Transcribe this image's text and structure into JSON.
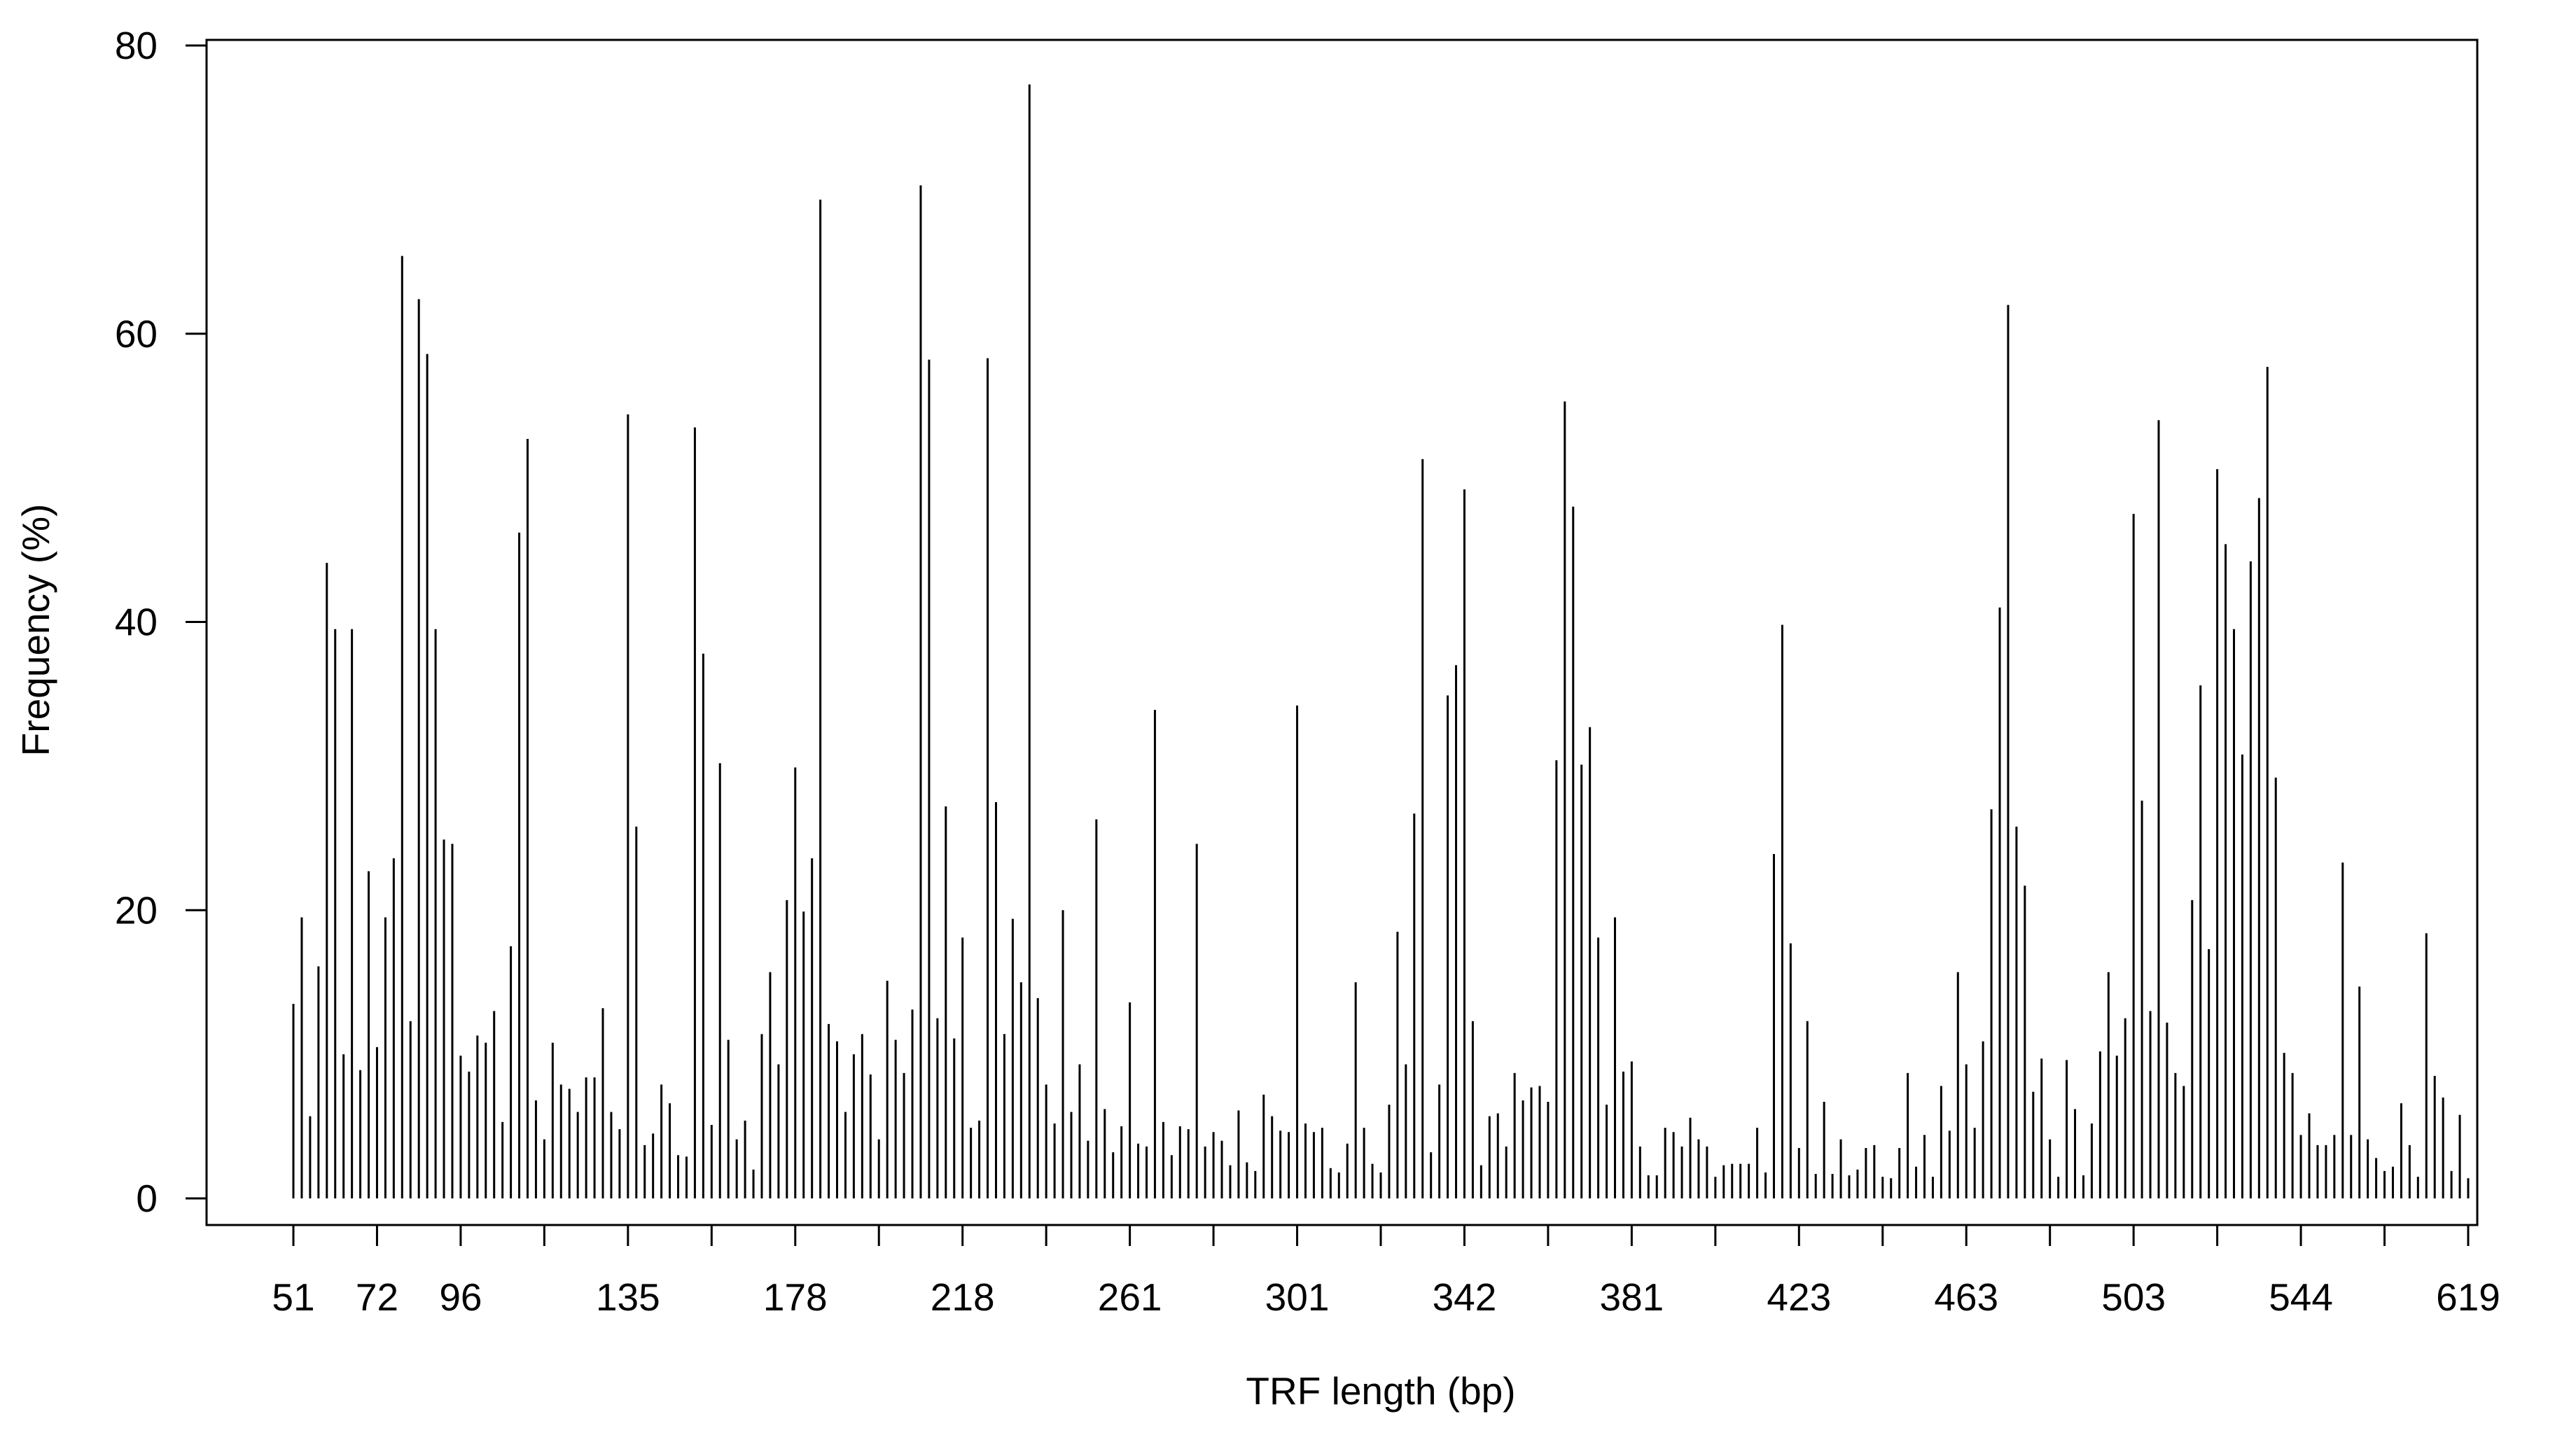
{
  "chart_data": {
    "type": "bar",
    "title": "",
    "xlabel": "TRF length (bp)",
    "ylabel": "Frequency (%)",
    "ylim": [
      0,
      80
    ],
    "yticks": [
      0,
      20,
      40,
      60,
      80
    ],
    "xtick_labels": [
      "51",
      "72",
      "96",
      "135",
      "178",
      "218",
      "261",
      "301",
      "342",
      "381",
      "423",
      "463",
      "503",
      "544",
      "619"
    ],
    "grid": false,
    "legend": "none",
    "bar_color": "#000000",
    "values": [
      13.5,
      19.5,
      5.7,
      16.1,
      44.1,
      39.5,
      10.0,
      39.5,
      8.9,
      22.7,
      10.5,
      19.5,
      23.6,
      65.4,
      12.3,
      62.4,
      58.6,
      39.5,
      24.9,
      24.6,
      9.9,
      8.8,
      11.3,
      10.8,
      13.0,
      5.3,
      17.5,
      46.2,
      52.7,
      6.8,
      4.1,
      10.8,
      7.9,
      7.6,
      6.0,
      8.4,
      8.4,
      13.2,
      6.0,
      4.8,
      54.4,
      25.8,
      3.7,
      4.5,
      7.9,
      6.6,
      3.0,
      2.9,
      53.5,
      37.8,
      5.1,
      30.2,
      11.0,
      4.1,
      5.4,
      2.0,
      11.4,
      15.7,
      9.3,
      20.7,
      29.9,
      19.9,
      23.6,
      69.3,
      12.1,
      10.9,
      6.0,
      10.0,
      11.4,
      8.6,
      4.1,
      15.1,
      11.0,
      8.7,
      13.1,
      70.3,
      58.2,
      12.5,
      27.2,
      11.1,
      18.1,
      4.9,
      5.4,
      58.3,
      27.5,
      11.4,
      19.4,
      15.0,
      77.3,
      13.9,
      7.9,
      5.2,
      20.0,
      6.0,
      9.3,
      4.0,
      26.3,
      6.2,
      3.2,
      5.0,
      13.6,
      3.8,
      3.6,
      33.9,
      5.3,
      3.0,
      5.0,
      4.8,
      24.6,
      3.6,
      4.6,
      4.0,
      2.3,
      6.1,
      2.5,
      1.9,
      7.2,
      5.7,
      4.7,
      4.6,
      34.2,
      5.2,
      4.6,
      4.9,
      2.1,
      1.8,
      3.8,
      15.0,
      4.9,
      2.4,
      1.8,
      6.5,
      18.5,
      9.3,
      26.7,
      51.3,
      3.2,
      7.9,
      34.9,
      37.0,
      49.2,
      12.3,
      2.3,
      5.7,
      5.9,
      3.6,
      8.7,
      6.8,
      7.7,
      7.8,
      6.7,
      30.4,
      55.3,
      48.0,
      30.1,
      32.7,
      18.1,
      6.5,
      19.5,
      8.8,
      9.5,
      3.6,
      1.6,
      1.6,
      4.9,
      4.6,
      3.6,
      5.6,
      4.1,
      3.6,
      1.5,
      2.3,
      2.4,
      2.4,
      2.4,
      4.9,
      1.8,
      23.9,
      39.8,
      17.7,
      3.5,
      12.3,
      1.7,
      6.7,
      1.7,
      4.1,
      1.6,
      2.0,
      3.5,
      3.7,
      1.5,
      1.4,
      3.5,
      8.7,
      2.2,
      4.4,
      1.5,
      7.8,
      4.7,
      15.7,
      9.3,
      4.9,
      10.9,
      27.0,
      41.0,
      62.0,
      25.8,
      21.7,
      7.4,
      9.7,
      4.1,
      1.5,
      9.6,
      6.2,
      1.6,
      5.2,
      10.2,
      15.7,
      9.9,
      12.5,
      47.5,
      27.6,
      13.0,
      54.0,
      12.2,
      8.7,
      7.8,
      20.7,
      35.6,
      17.3,
      50.6,
      45.4,
      39.5,
      30.8,
      44.2,
      48.6,
      57.7,
      29.2,
      10.1,
      8.7,
      4.4,
      5.9,
      3.7,
      3.7,
      4.4,
      23.3,
      4.4,
      14.7,
      4.1,
      2.8,
      1.9,
      2.2,
      6.6,
      3.7,
      1.5,
      18.4,
      8.5,
      7.0,
      1.9,
      5.8,
      1.4
    ]
  }
}
